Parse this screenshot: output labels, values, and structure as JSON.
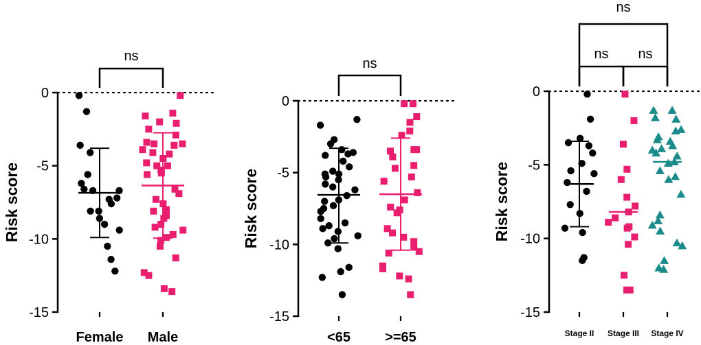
{
  "chart_data": [
    {
      "type": "scatter",
      "ylabel": "Risk score",
      "ylim": [
        -15,
        0
      ],
      "yticks": [
        0,
        -5,
        -10,
        -15
      ],
      "yticklabels": [
        "0",
        "-5",
        "-10",
        "-15"
      ],
      "zero_line": "dotted",
      "categories": [
        "Female",
        "Male"
      ],
      "series": [
        {
          "name": "Female",
          "color": "#000000",
          "marker": "circle",
          "mean": -6.85,
          "sd_low": -9.9,
          "sd_high": -3.8,
          "values": [
            -0.2,
            -1.3,
            -3.6,
            -4.1,
            -5.6,
            -6.2,
            -6.7,
            -6.6,
            -6.7,
            -7.2,
            -7.3,
            -7.6,
            -8.1,
            -8.1,
            -8.6,
            -9.0,
            -9.4,
            -10.5,
            -11.4,
            -12.2
          ]
        },
        {
          "name": "Male",
          "color": "#ea1e6e",
          "marker": "square",
          "mean": -6.35,
          "sd_low": -9.95,
          "sd_high": -2.75,
          "values": [
            -0.2,
            -1.4,
            -1.6,
            -2.0,
            -2.1,
            -2.5,
            -2.9,
            -3.4,
            -3.5,
            -3.5,
            -3.6,
            -3.9,
            -4.1,
            -4.2,
            -4.5,
            -4.8,
            -5.0,
            -5.0,
            -5.3,
            -5.5,
            -5.6,
            -6.6,
            -6.9,
            -7.3,
            -7.6,
            -8.0,
            -8.1,
            -8.4,
            -8.6,
            -9.0,
            -9.2,
            -9.4,
            -9.7,
            -9.9,
            -10.1,
            -10.5,
            -11.3,
            -12.3,
            -12.5,
            -13.4,
            -13.6
          ]
        }
      ],
      "comparisons": [
        {
          "from": "Female",
          "to": "Male",
          "label": "ns"
        }
      ]
    },
    {
      "type": "scatter",
      "ylabel": "Risk score",
      "ylim": [
        -15,
        0
      ],
      "yticks": [
        0,
        -5,
        -10,
        -15
      ],
      "yticklabels": [
        "0",
        "-5",
        "-10",
        "-15"
      ],
      "zero_line": "dotted",
      "categories": [
        "<65",
        ">=65"
      ],
      "series": [
        {
          "name": "<65",
          "color": "#000000",
          "marker": "circle",
          "mean": -6.55,
          "sd_low": -9.9,
          "sd_high": -3.3,
          "values": [
            -1.3,
            -1.7,
            -2.7,
            -3.0,
            -3.4,
            -3.6,
            -3.7,
            -3.8,
            -4.2,
            -4.6,
            -4.9,
            -5.1,
            -5.1,
            -5.3,
            -5.5,
            -5.8,
            -6.0,
            -6.2,
            -6.6,
            -6.9,
            -7.0,
            -7.3,
            -7.5,
            -7.7,
            -8.2,
            -8.5,
            -8.7,
            -8.9,
            -9.1,
            -9.4,
            -9.6,
            -9.9,
            -10.3,
            -11.6,
            -11.9,
            -12.3,
            -13.5
          ]
        },
        {
          "name": ">=65",
          "color": "#ea1e6e",
          "marker": "square",
          "mean": -6.5,
          "sd_low": -10.4,
          "sd_high": -2.6,
          "values": [
            -0.2,
            -0.2,
            -1.1,
            -1.5,
            -2.1,
            -2.4,
            -3.4,
            -3.4,
            -3.5,
            -3.9,
            -4.5,
            -4.7,
            -5.3,
            -5.6,
            -6.4,
            -6.9,
            -7.4,
            -7.6,
            -7.8,
            -8.9,
            -9.2,
            -9.5,
            -9.8,
            -10.2,
            -10.5,
            -10.6,
            -11.5,
            -11.7,
            -12.2,
            -12.4,
            -13.5
          ]
        }
      ],
      "comparisons": [
        {
          "from": "<65",
          "to": ">=65",
          "label": "ns"
        }
      ]
    },
    {
      "type": "scatter",
      "ylabel": "Risk score",
      "ylim": [
        -15,
        0
      ],
      "yticks": [
        0,
        -5,
        -10,
        -15
      ],
      "yticklabels": [
        "0",
        "-5",
        "-10",
        "-15"
      ],
      "zero_line": "dotted",
      "categories": [
        "Stage II",
        "Stage III",
        "Stage IV"
      ],
      "series": [
        {
          "name": "Stage II",
          "color": "#000000",
          "marker": "circle",
          "mean": -6.3,
          "sd_low": -9.2,
          "sd_high": -3.4,
          "values": [
            -0.2,
            -1.9,
            -3.2,
            -3.5,
            -3.7,
            -4.2,
            -4.9,
            -5.4,
            -5.6,
            -6.2,
            -6.8,
            -7.7,
            -8.3,
            -9.3,
            -9.6,
            -11.3,
            -11.5
          ]
        },
        {
          "name": "Stage III",
          "color": "#ea1e6e",
          "marker": "square",
          "mean": -8.2,
          "sd_low": -8.2,
          "sd_high": -8.2,
          "values": [
            -0.2,
            -2.0,
            -3.6,
            -5.3,
            -6.0,
            -7.2,
            -7.8,
            -8.2,
            -8.6,
            -8.9,
            -9.2,
            -9.3,
            -9.9,
            -10.4,
            -12.5,
            -13.5,
            -13.5
          ]
        },
        {
          "name": "Stage IV",
          "color": "#1b8a8a",
          "marker": "triangle",
          "mean": -4.8,
          "sd_low": -4.8,
          "sd_high": -4.8,
          "values": [
            -1.3,
            -1.3,
            -1.8,
            -1.9,
            -2.6,
            -2.7,
            -3.1,
            -3.3,
            -3.4,
            -3.7,
            -3.9,
            -4.0,
            -4.2,
            -4.4,
            -4.8,
            -4.9,
            -5.4,
            -5.8,
            -6.0,
            -7.0,
            -8.4,
            -8.8,
            -9.1,
            -9.5,
            -10.3,
            -10.5,
            -11.5,
            -12.0,
            -12.1
          ]
        }
      ],
      "comparisons": [
        {
          "from": "Stage II",
          "to": "Stage III",
          "label": "ns"
        },
        {
          "from": "Stage III",
          "to": "Stage IV",
          "label": "ns"
        },
        {
          "from": "Stage II",
          "to": "Stage IV",
          "label": "ns"
        }
      ]
    }
  ]
}
